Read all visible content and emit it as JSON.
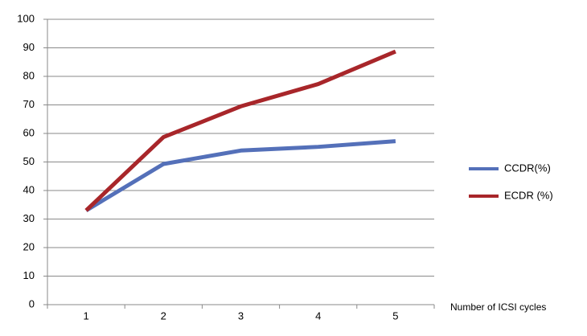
{
  "chart_data": {
    "type": "line",
    "x_label": "Number of ICSI cycles",
    "categories": [
      "1",
      "2",
      "3",
      "4",
      "5"
    ],
    "series": [
      {
        "name": "CCDR(%)",
        "color": "#5470b9",
        "values": [
          33,
          49.3,
          54,
          55.3,
          57.3
        ]
      },
      {
        "name": "ECDR (%)",
        "color": "#a8262a",
        "values": [
          33,
          58.7,
          69.5,
          77.3,
          88.7
        ]
      }
    ],
    "ylim": [
      0,
      100
    ],
    "yticks": [
      0,
      10,
      20,
      30,
      40,
      50,
      60,
      70,
      80,
      90,
      100
    ],
    "grid": true,
    "legend": "right"
  }
}
